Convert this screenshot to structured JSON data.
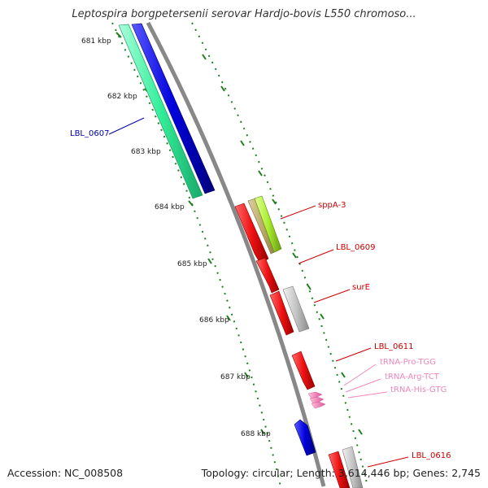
{
  "title": "Leptospira borgpetersenii serovar Hardjo-bovis L550 chromoso...",
  "footer": {
    "accession": "Accession: NC_008508",
    "stats": "Topology: circular; Length: 3,614,446 bp; Genes: 2,745"
  },
  "scale_ticks": [
    "681 kbp",
    "682 kbp",
    "683 kbp",
    "684 kbp",
    "685 kbp",
    "686 kbp",
    "687 kbp",
    "688 kbp"
  ],
  "gene_labels": [
    {
      "text": "LBL_0607",
      "color": "#0000aa"
    },
    {
      "text": "sppA-3",
      "color": "#cc0000"
    },
    {
      "text": "LBL_0609",
      "color": "#cc0000"
    },
    {
      "text": "surE",
      "color": "#cc0000"
    },
    {
      "text": "LBL_0611",
      "color": "#cc0000"
    },
    {
      "text": "tRNA-Pro-TGG",
      "color": "#ee88bb"
    },
    {
      "text": "tRNA-Arg-TCT",
      "color": "#ee88bb"
    },
    {
      "text": "tRNA-His-GTG",
      "color": "#ee88bb"
    },
    {
      "text": "LBL_0616",
      "color": "#cc0000"
    }
  ],
  "colors": {
    "backbone": "#888888",
    "tick": "#1f7f1f",
    "forward_cds": "#ee1111",
    "reverse_cds": "#0000dd",
    "cyan_gene": "#33ee99",
    "pseudo_gene": "#bbbbbb",
    "trna": "#ee88bb",
    "lime_gene": "#aaee33",
    "olive_gene": "#bbaa66"
  }
}
